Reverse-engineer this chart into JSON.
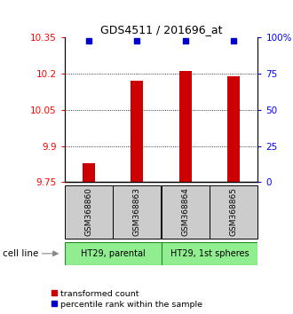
{
  "title": "GDS4511 / 201696_at",
  "samples": [
    "GSM368860",
    "GSM368863",
    "GSM368864",
    "GSM368865"
  ],
  "bar_values": [
    9.83,
    10.17,
    10.21,
    10.19
  ],
  "percentile_values": [
    98,
    98,
    98,
    98
  ],
  "y_min": 9.75,
  "y_max": 10.35,
  "y_ticks_left": [
    9.75,
    9.9,
    10.05,
    10.2,
    10.35
  ],
  "y_ticks_right": [
    0,
    25,
    50,
    75,
    100
  ],
  "bar_color": "#cc0000",
  "percentile_color": "#0000cc",
  "group_labels": [
    "HT29, parental",
    "HT29, 1st spheres"
  ],
  "group_colors": [
    "#90ee90",
    "#90ee90"
  ],
  "sample_box_color": "#cccccc",
  "cell_line_label": "cell line",
  "legend_items": [
    "transformed count",
    "percentile rank within the sample"
  ],
  "legend_colors": [
    "#cc0000",
    "#0000cc"
  ],
  "bar_width": 0.25
}
